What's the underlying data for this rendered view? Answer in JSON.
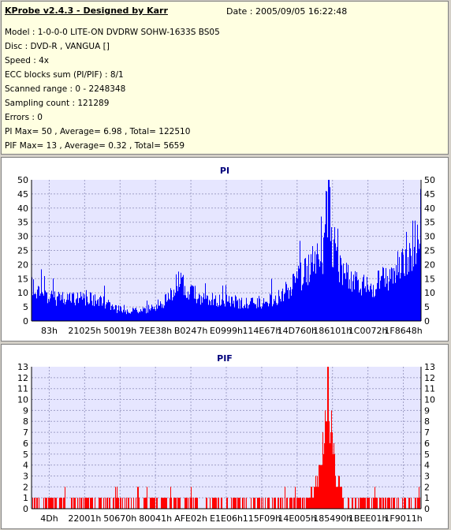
{
  "info": {
    "title": "KProbe v2.4.3 - Designed by Karr",
    "date": "Date : 2005/09/05 16:22:48",
    "lines": [
      "Model : 1-0-0-0 LITE-ON DVDRW SOHW-1633S BS05",
      "Disc : DVD-R , VANGUA []",
      "Speed : 4x",
      "ECC blocks sum (PI/PIF) : 8/1",
      "Scanned range : 0 - 2248348",
      "Sampling count : 121289",
      "Errors : 0",
      "PI Max= 50 , Average= 6.98 , Total= 122510",
      "PIF Max= 13 , Average= 0.32 , Total= 5659"
    ]
  },
  "colors": {
    "info_bg": "#ffffe1",
    "plot_bg": "#e6e6ff",
    "pi_color": "#0000ff",
    "pif_color": "#ff0000",
    "title_color": "#00007b",
    "window_bg": "#d4d0c8"
  },
  "chart_data": [
    {
      "type": "bar",
      "title": "PI",
      "ylim": [
        0,
        50
      ],
      "y_ticks": [
        0,
        5,
        10,
        15,
        20,
        25,
        30,
        35,
        40,
        45,
        50
      ],
      "x_tick_labels": [
        "83h",
        "21025h",
        "50019h",
        "7EE38h",
        "B0247h",
        "E0999h",
        "114E67h",
        "14D760h",
        "186101h",
        "1C0072h",
        "1F8648h"
      ],
      "grid": true,
      "color": "#0000ff",
      "profile": [
        [
          0,
          14
        ],
        [
          0.03,
          11
        ],
        [
          0.08,
          9
        ],
        [
          0.13,
          10
        ],
        [
          0.18,
          8
        ],
        [
          0.22,
          5
        ],
        [
          0.26,
          4
        ],
        [
          0.3,
          5
        ],
        [
          0.34,
          8
        ],
        [
          0.36,
          13
        ],
        [
          0.38,
          16
        ],
        [
          0.4,
          12
        ],
        [
          0.45,
          9
        ],
        [
          0.52,
          8
        ],
        [
          0.58,
          7
        ],
        [
          0.62,
          9
        ],
        [
          0.66,
          13
        ],
        [
          0.69,
          18
        ],
        [
          0.71,
          22
        ],
        [
          0.73,
          25
        ],
        [
          0.75,
          30
        ],
        [
          0.76,
          50
        ],
        [
          0.77,
          35
        ],
        [
          0.78,
          27
        ],
        [
          0.8,
          20
        ],
        [
          0.82,
          16
        ],
        [
          0.86,
          14
        ],
        [
          0.9,
          17
        ],
        [
          0.94,
          22
        ],
        [
          0.97,
          30
        ],
        [
          1.0,
          36
        ]
      ]
    },
    {
      "type": "bar",
      "title": "PIF",
      "ylim": [
        0,
        13
      ],
      "y_ticks": [
        0,
        1,
        2,
        3,
        4,
        5,
        6,
        7,
        8,
        9,
        10,
        11,
        12,
        13
      ],
      "x_tick_labels": [
        "4Dh",
        "22001h",
        "50670h",
        "80041h",
        "AFE02h",
        "E1E06h",
        "115F09h",
        "14E005h",
        "185490h",
        "1BEE01h",
        "1F9011h"
      ],
      "grid": true,
      "color": "#ff0000",
      "profile": [
        [
          0,
          1
        ],
        [
          0.7,
          1
        ],
        [
          0.72,
          2
        ],
        [
          0.74,
          4
        ],
        [
          0.75,
          8
        ],
        [
          0.76,
          13
        ],
        [
          0.77,
          9
        ],
        [
          0.78,
          4
        ],
        [
          0.8,
          1
        ],
        [
          1.0,
          1
        ]
      ]
    }
  ]
}
